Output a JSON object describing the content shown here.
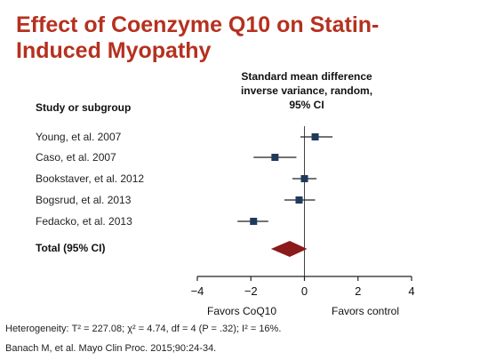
{
  "title_lines": [
    "Effect of Coenzyme Q10 on Statin-",
    "Induced Myopathy"
  ],
  "ci_header_lines": [
    "Standard mean difference",
    "inverse variance, random,",
    "95% CI"
  ],
  "subgroup_header": "Study or subgroup",
  "chart_data": {
    "type": "forest",
    "studies": [
      {
        "label": "Young, et al. 2007",
        "estimate": 0.4,
        "ci": [
          -0.15,
          1.05
        ]
      },
      {
        "label": "Caso, et al. 2007",
        "estimate": -1.1,
        "ci": [
          -1.9,
          -0.3
        ]
      },
      {
        "label": "Bookstaver, et al. 2012",
        "estimate": 0.0,
        "ci": [
          -0.45,
          0.45
        ]
      },
      {
        "label": "Bogsrud, et al. 2013",
        "estimate": -0.2,
        "ci": [
          -0.75,
          0.4
        ]
      },
      {
        "label": "Fedacko, et al. 2013",
        "estimate": -1.9,
        "ci": [
          -2.5,
          -1.35
        ]
      }
    ],
    "total": {
      "label": "Total (95% CI)",
      "estimate": -0.55,
      "ci": [
        -1.25,
        0.1
      ]
    },
    "x_ticks": [
      -4,
      -2,
      0,
      2,
      4
    ],
    "x_tick_labels": [
      "−4",
      "−2",
      "0",
      "2",
      "4"
    ],
    "xlim": [
      -4,
      4
    ],
    "xlabel_left": "Favors CoQ10",
    "xlabel_right": "Favors control",
    "colors": {
      "study_marker": "#1f3a5a",
      "total_diamond": "#8b1a1a",
      "title": "#b5311f"
    }
  },
  "footnotes": {
    "heterogeneity": "Heterogeneity: Τ² = 227.08; χ² = 4.74, df = 4 (P = .32); I² = 16%.",
    "citation": "Banach M, et al. Mayo Clin Proc. 2015;90:24-34."
  }
}
